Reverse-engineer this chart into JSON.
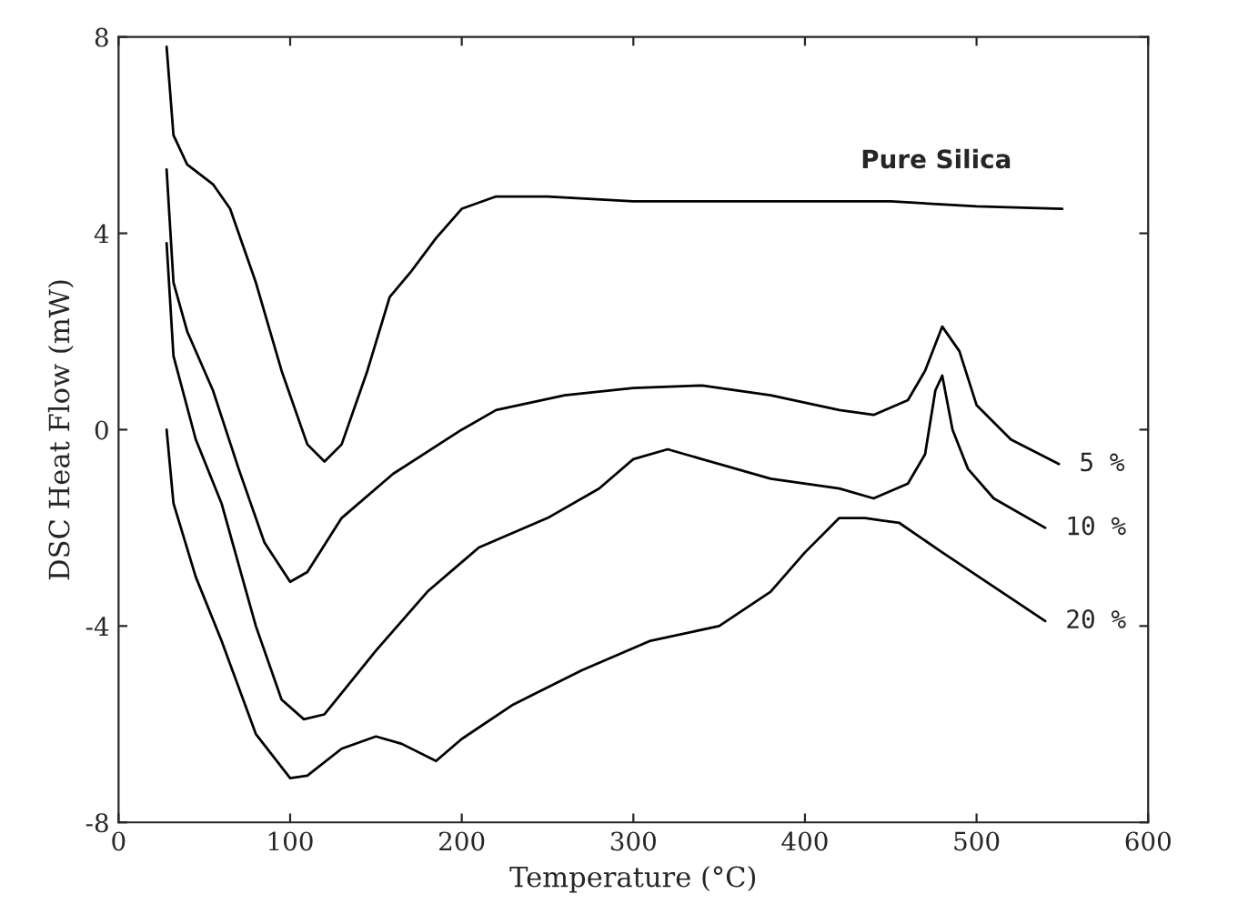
{
  "chart_data": {
    "type": "line",
    "xlabel": "Temperature (°C)",
    "ylabel": "DSC Heat Flow (mW)",
    "xlim": [
      0,
      600
    ],
    "ylim": [
      -8,
      8
    ],
    "xticks": [
      0,
      100,
      200,
      300,
      400,
      500,
      600
    ],
    "yticks": [
      -8,
      -4,
      0,
      4,
      8
    ],
    "grid": false,
    "marker": "none",
    "line_style": "solid",
    "series": [
      {
        "name": "Pure Silica",
        "color": "#000000",
        "x": [
          28,
          32,
          40,
          55,
          65,
          80,
          95,
          110,
          120,
          130,
          145,
          158,
          170,
          185,
          200,
          220,
          250,
          300,
          350,
          400,
          450,
          500,
          550
        ],
        "values": [
          7.8,
          6.0,
          5.4,
          5.0,
          4.5,
          3.0,
          1.2,
          -0.3,
          -0.65,
          -0.3,
          1.2,
          2.7,
          3.2,
          3.9,
          4.5,
          4.75,
          4.75,
          4.65,
          4.65,
          4.65,
          4.65,
          4.55,
          4.5
        ]
      },
      {
        "name": "5 %",
        "color": "#000000",
        "x": [
          28,
          32,
          40,
          55,
          70,
          85,
          100,
          110,
          130,
          160,
          200,
          220,
          260,
          300,
          340,
          380,
          420,
          440,
          460,
          470,
          480,
          490,
          500,
          520,
          548
        ],
        "values": [
          5.3,
          3.0,
          2.0,
          0.8,
          -0.8,
          -2.3,
          -3.1,
          -2.9,
          -1.8,
          -0.9,
          0.0,
          0.4,
          0.7,
          0.85,
          0.9,
          0.7,
          0.4,
          0.3,
          0.6,
          1.2,
          2.1,
          1.6,
          0.5,
          -0.2,
          -0.7
        ]
      },
      {
        "name": "10 %",
        "color": "#000000",
        "x": [
          28,
          32,
          45,
          60,
          80,
          95,
          108,
          120,
          150,
          180,
          210,
          250,
          280,
          300,
          320,
          340,
          380,
          420,
          440,
          460,
          470,
          476,
          480,
          486,
          495,
          510,
          540
        ],
        "values": [
          3.8,
          1.5,
          -0.2,
          -1.5,
          -4.0,
          -5.5,
          -5.9,
          -5.8,
          -4.5,
          -3.3,
          -2.4,
          -1.8,
          -1.2,
          -0.6,
          -0.4,
          -0.6,
          -1.0,
          -1.2,
          -1.4,
          -1.1,
          -0.5,
          0.8,
          1.1,
          0.0,
          -0.8,
          -1.4,
          -2.0
        ]
      },
      {
        "name": "20 %",
        "color": "#000000",
        "x": [
          28,
          32,
          45,
          60,
          80,
          100,
          110,
          130,
          150,
          165,
          185,
          200,
          230,
          270,
          310,
          350,
          380,
          400,
          420,
          435,
          445,
          455,
          480,
          510,
          540
        ],
        "values": [
          0.0,
          -1.5,
          -3.0,
          -4.3,
          -6.2,
          -7.1,
          -7.05,
          -6.5,
          -6.25,
          -6.4,
          -6.75,
          -6.3,
          -5.6,
          -4.9,
          -4.3,
          -4.0,
          -3.3,
          -2.5,
          -1.8,
          -1.8,
          -1.85,
          -1.9,
          -2.5,
          -3.2,
          -3.9
        ]
      }
    ]
  }
}
